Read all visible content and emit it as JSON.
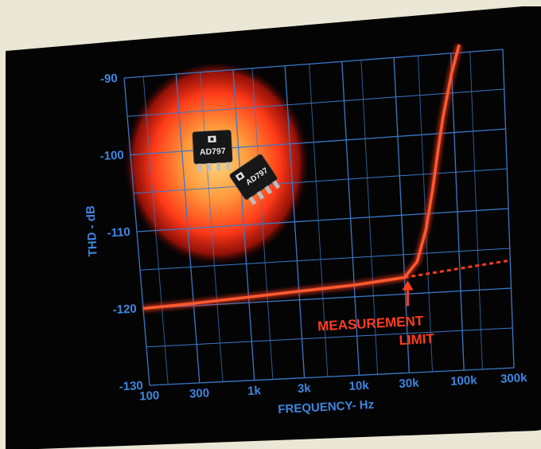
{
  "chart_data": {
    "type": "line",
    "title": "",
    "xlabel": "FREQUENCY- Hz",
    "ylabel": "THD - dB",
    "x_scale": "log",
    "xlim": [
      100,
      300000
    ],
    "ylim": [
      -130,
      -90
    ],
    "x_ticks": [
      {
        "value": 100,
        "label": "100"
      },
      {
        "value": 300,
        "label": "300"
      },
      {
        "value": 1000,
        "label": "1k"
      },
      {
        "value": 3000,
        "label": "3k"
      },
      {
        "value": 10000,
        "label": "10k"
      },
      {
        "value": 30000,
        "label": "30k"
      },
      {
        "value": 100000,
        "label": "100k"
      },
      {
        "value": 300000,
        "label": "300k"
      }
    ],
    "y_ticks": [
      {
        "value": -90,
        "label": "-90"
      },
      {
        "value": -100,
        "label": "-100"
      },
      {
        "value": -110,
        "label": "-110"
      },
      {
        "value": -120,
        "label": "-120"
      },
      {
        "value": -130,
        "label": "-130"
      }
    ],
    "grid": true,
    "series": [
      {
        "name": "",
        "x": [
          100,
          300,
          1000,
          3000,
          10000,
          30000,
          40000,
          50000,
          60000,
          70000,
          80000,
          100000,
          120000
        ],
        "y": [
          -120,
          -119.7,
          -119.3,
          -118.9,
          -118.5,
          -117.9,
          -116,
          -112,
          -107,
          -102,
          -98,
          -92.5,
          -89
        ]
      }
    ],
    "measurement_limit": {
      "x": [
        30000,
        300000
      ],
      "y": [
        -117.9,
        -116.5
      ]
    },
    "annotations": [
      {
        "text_lines": [
          "MEASUREMENT",
          "LIMIT"
        ]
      }
    ],
    "colors": {
      "background": "#040404",
      "grid": "#3a78c8",
      "axis_text": "#3f86e0",
      "curve": "#ff3a1e",
      "annotation": "#ff3c1c",
      "glow_center": "#ffd47a",
      "glow_edge": "#ff2a12"
    }
  },
  "chips": [
    {
      "label": "AD797"
    },
    {
      "label": "AD797"
    }
  ]
}
